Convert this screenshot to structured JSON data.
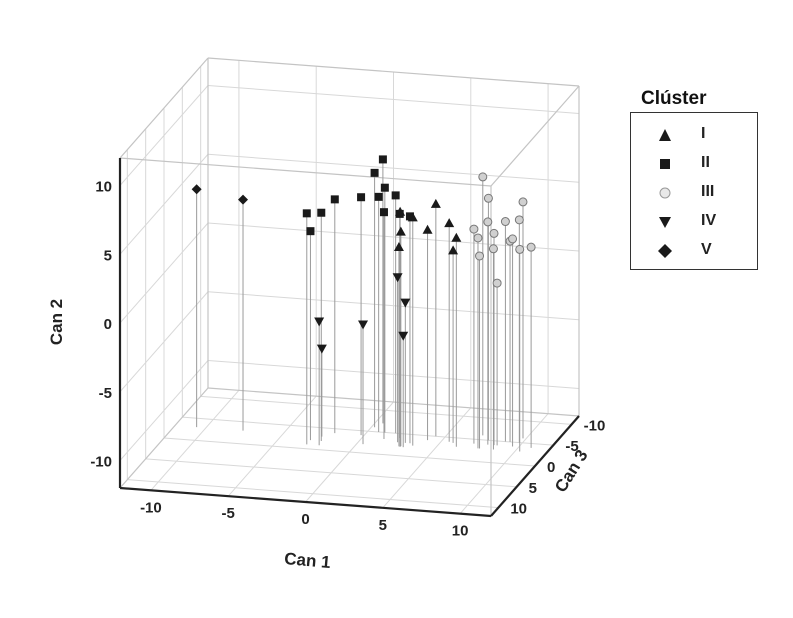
{
  "legend": {
    "title": "Clúster",
    "items": [
      {
        "label": "I",
        "shape": "triangle-up",
        "color": "#1a1a1a"
      },
      {
        "label": "II",
        "shape": "square",
        "color": "#1a1a1a"
      },
      {
        "label": "III",
        "shape": "circle",
        "color": "#d0d0d0"
      },
      {
        "label": "IV",
        "shape": "triangle-down",
        "color": "#1a1a1a"
      },
      {
        "label": "V",
        "shape": "diamond",
        "color": "#1a1a1a"
      }
    ]
  },
  "chart_data": {
    "type": "scatter",
    "xlabel": "Can 1",
    "ylabel": "Can 2",
    "zlabel": "Can 3",
    "xlim": [
      -12,
      12
    ],
    "ylim": [
      -12,
      12
    ],
    "zlim": [
      -12,
      12
    ],
    "x_ticks": [
      -10,
      -5,
      0,
      5,
      10
    ],
    "y_ticks": [
      -10,
      -5,
      0,
      5,
      10
    ],
    "z_ticks": [
      -10,
      -5,
      0,
      5,
      10
    ],
    "grid": true,
    "drop_lines": true,
    "legend_position": "right",
    "series": [
      {
        "name": "I",
        "points": [
          {
            "x": 2.8,
            "y": 5.1,
            "z": -2
          },
          {
            "x": 3.5,
            "y": 4.6,
            "z": -2.5
          },
          {
            "x": 4.4,
            "y": 4.9,
            "z": -5
          },
          {
            "x": 2.8,
            "y": 3.6,
            "z": -2.2
          },
          {
            "x": 4.1,
            "y": 3.3,
            "z": -4
          },
          {
            "x": 6.2,
            "y": 3.2,
            "z": -3
          },
          {
            "x": 2.7,
            "y": 2.5,
            "z": -2.1
          },
          {
            "x": 5.5,
            "y": 3.9,
            "z": -4
          },
          {
            "x": 5.8,
            "y": 2.0,
            "z": -3.8
          }
        ]
      },
      {
        "name": "II",
        "points": [
          {
            "x": -3.0,
            "y": 4.8,
            "z": -1
          },
          {
            "x": -3.0,
            "y": 3.2,
            "z": -2
          },
          {
            "x": -2.3,
            "y": 4.6,
            "z": -2
          },
          {
            "x": -1.9,
            "y": 5.0,
            "z": -4
          },
          {
            "x": -0.2,
            "y": 5.3,
            "z": -4
          },
          {
            "x": 0.2,
            "y": 6.5,
            "z": -6
          },
          {
            "x": 0.5,
            "y": 7.2,
            "z": -7
          },
          {
            "x": 0.7,
            "y": 5.1,
            "z": -5
          },
          {
            "x": 1.1,
            "y": 5.8,
            "z": -5
          },
          {
            "x": 1.8,
            "y": 5.3,
            "z": -5
          },
          {
            "x": 1.4,
            "y": 4.5,
            "z": -3.5
          },
          {
            "x": 2.3,
            "y": 4.3,
            "z": -4
          },
          {
            "x": 3.2,
            "y": 4.5,
            "z": -3
          }
        ]
      },
      {
        "name": "III",
        "points": [
          {
            "x": 7.2,
            "y": 6.8,
            "z": -6
          },
          {
            "x": 7.8,
            "y": 5.6,
            "z": -5
          },
          {
            "x": 7.1,
            "y": 3.6,
            "z": -4
          },
          {
            "x": 7.6,
            "y": 3.3,
            "z": -3
          },
          {
            "x": 8.0,
            "y": 4.2,
            "z": -4
          },
          {
            "x": 8.4,
            "y": 3.4,
            "z": -4
          },
          {
            "x": 8.9,
            "y": 4.0,
            "z": -5
          },
          {
            "x": 8.6,
            "y": 2.6,
            "z": -3
          },
          {
            "x": 9.2,
            "y": 2.6,
            "z": -5
          },
          {
            "x": 9.8,
            "y": 5.2,
            "z": -6
          },
          {
            "x": 9.6,
            "y": 3.1,
            "z": -4
          },
          {
            "x": 10.3,
            "y": 2.7,
            "z": -3
          },
          {
            "x": 10.8,
            "y": 2.6,
            "z": -4
          },
          {
            "x": 7.7,
            "y": 2.0,
            "z": -3
          },
          {
            "x": 8.6,
            "y": -0.2,
            "z": -4
          },
          {
            "x": 9.8,
            "y": 4.2,
            "z": -5
          }
        ]
      },
      {
        "name": "IV",
        "points": [
          {
            "x": -2.2,
            "y": -3.0,
            "z": -1
          },
          {
            "x": 2.4,
            "y": 0.0,
            "z": -3
          },
          {
            "x": 2.9,
            "y": -1.8,
            "z": -3
          },
          {
            "x": 0.4,
            "y": -3.3,
            "z": -2
          },
          {
            "x": 3.0,
            "y": -3.9,
            "z": -2
          },
          {
            "x": -2.5,
            "y": -5.6,
            "z": -3
          }
        ]
      },
      {
        "name": "V",
        "points": [
          {
            "x": -10.6,
            "y": 5.3,
            "z": -3
          },
          {
            "x": -7.6,
            "y": 4.8,
            "z": -3
          }
        ]
      }
    ]
  }
}
